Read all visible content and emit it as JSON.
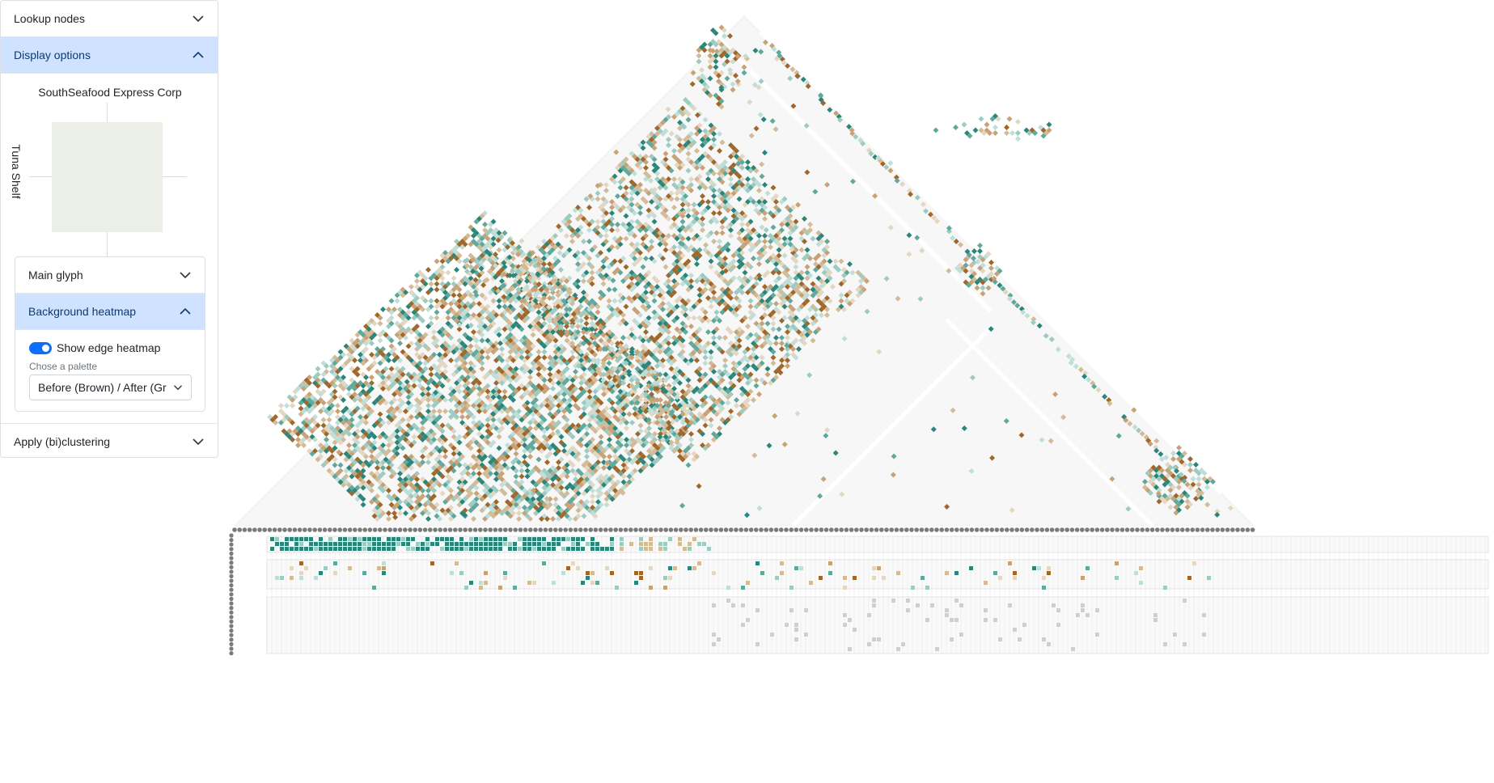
{
  "panel": {
    "lookup_nodes": "Lookup nodes",
    "display_options": "Display options",
    "glyph_title": "SouthSeafood Express Corp",
    "glyph_side_label": "Tuna Shelf",
    "main_glyph": "Main glyph",
    "background_heatmap": "Background heatmap",
    "show_edge_heatmap": "Show edge heatmap",
    "palette_label": "Chose a palette",
    "palette_value": "Before (Brown) / After (Gr",
    "apply_clustering": "Apply (bi)clustering"
  },
  "colors": {
    "active_header": "#cfe2ff",
    "toggle": "#0d6efd",
    "brown_dark": "#a0672a",
    "brown_light": "#d4bb98",
    "teal_dark": "#2b8578",
    "teal_light": "#9dcbc2",
    "grid": "#d9d9d9",
    "node": "#7a7a7a"
  }
}
